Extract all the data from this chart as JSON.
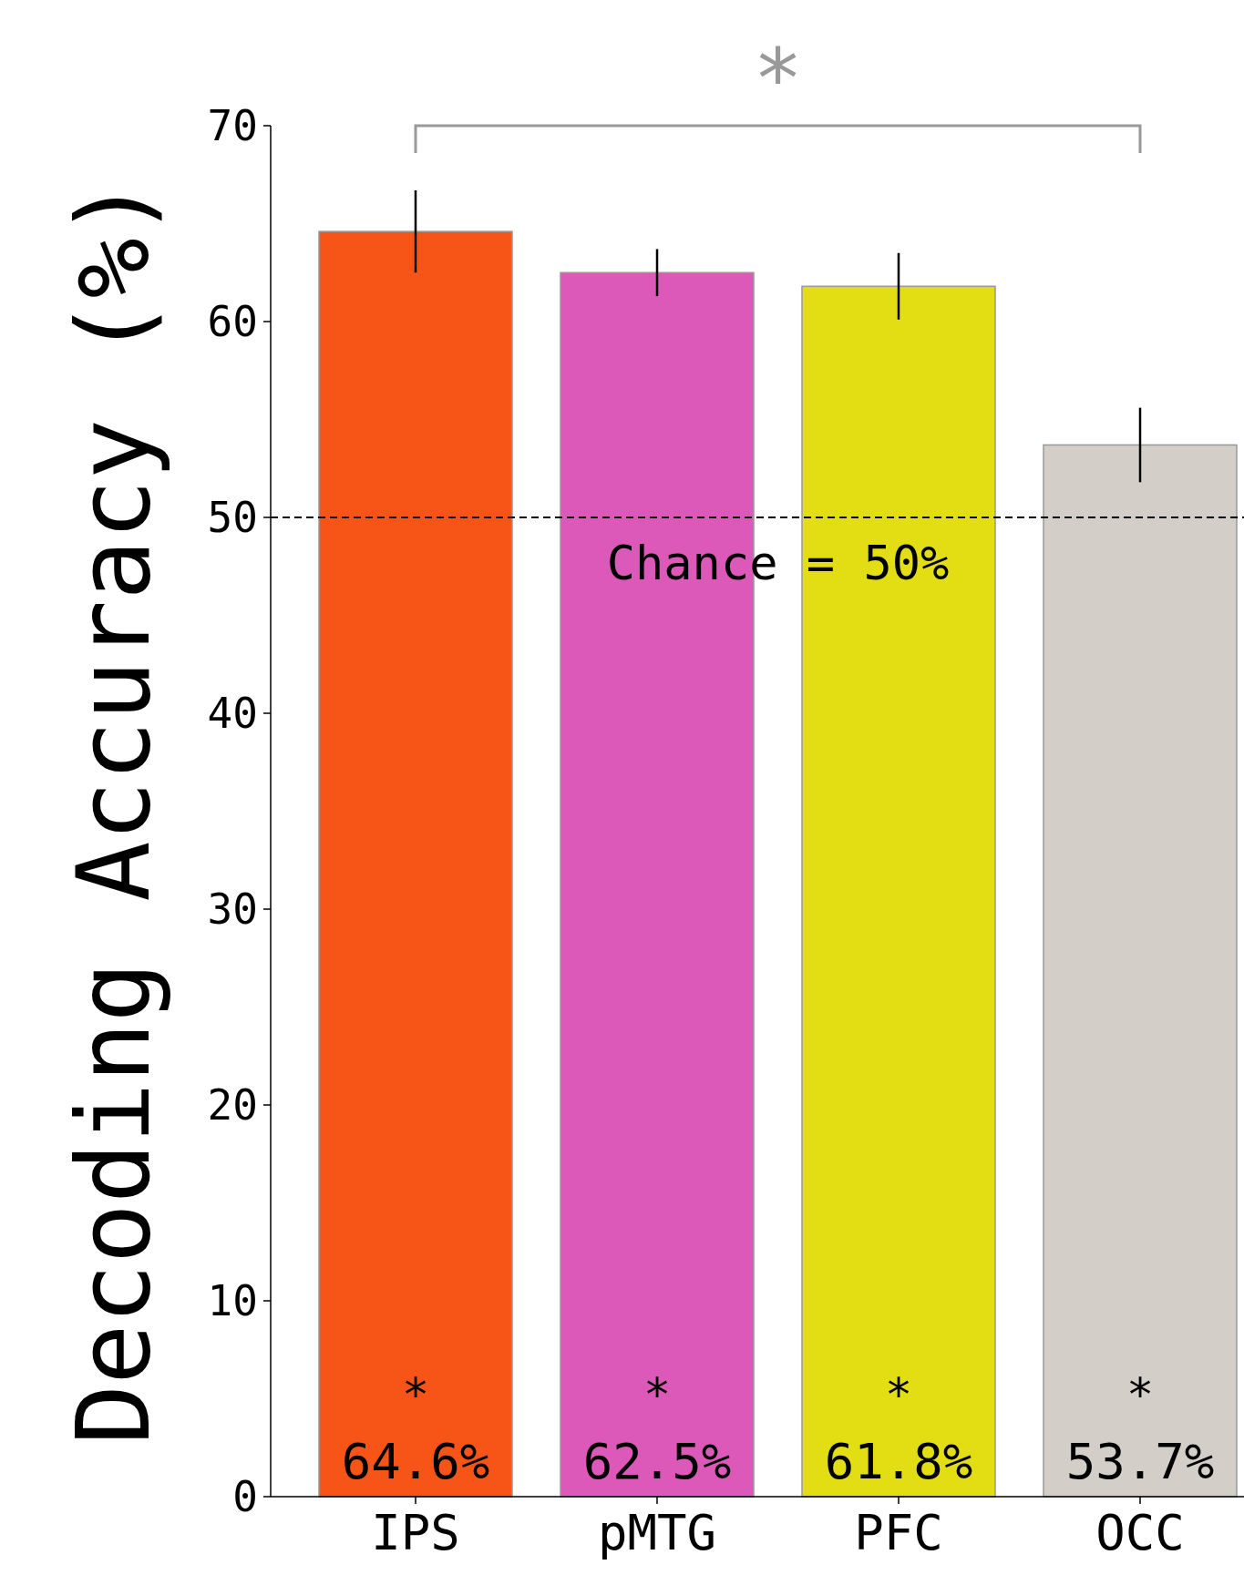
{
  "chart_data": {
    "type": "bar",
    "ylabel": "Decoding Accuracy (%)",
    "categories": [
      "IPS",
      "pMTG",
      "PFC",
      "OCC"
    ],
    "values": [
      64.6,
      62.5,
      61.8,
      53.7
    ],
    "colors": [
      "#f75418",
      "#dc58b9",
      "#e3dd14",
      "#d3cfc8"
    ],
    "errors": [
      2.1,
      1.2,
      1.7,
      1.9
    ],
    "value_labels": [
      "64.6%",
      "62.5%",
      "61.8%",
      "53.7%"
    ],
    "ylim": [
      0,
      70
    ],
    "yticks": [
      0,
      10,
      20,
      30,
      40,
      50,
      60,
      70
    ],
    "grid": false,
    "ref_lines": [
      {
        "axis": "y",
        "value": 50,
        "label": "Chance = 50%",
        "color": "#000000",
        "line_style": "dashed"
      }
    ],
    "annotations": [
      "*",
      "*",
      "*",
      "*",
      "*"
    ]
  }
}
